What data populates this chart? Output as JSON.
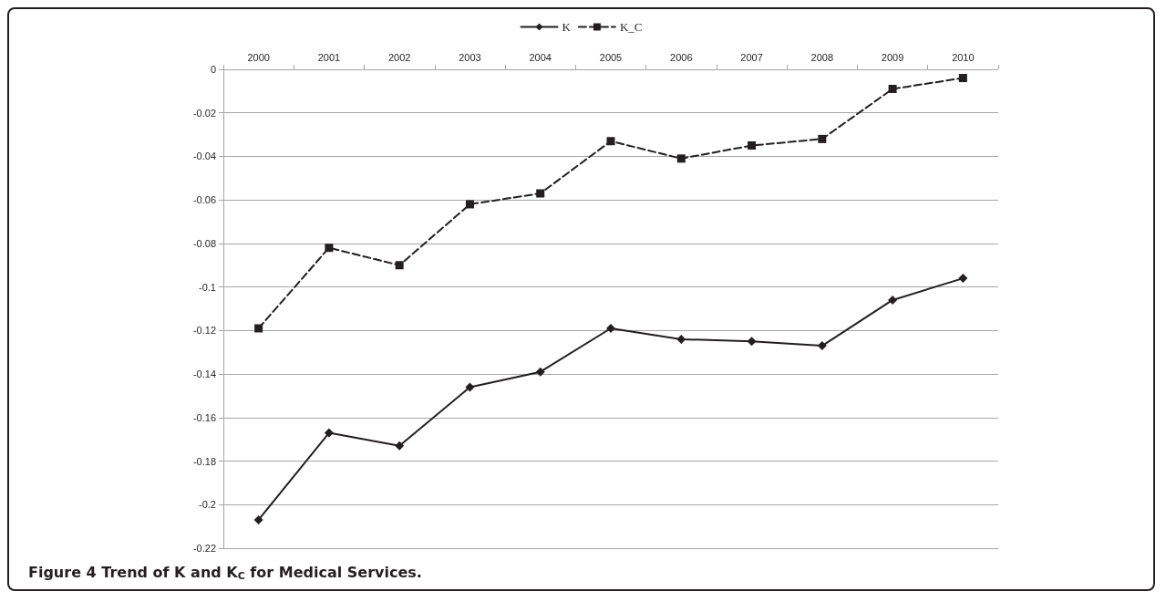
{
  "chart_data": {
    "type": "line",
    "title": "Figure 4 Trend of K and K$_{C}$ for Medical Services.",
    "categories": [
      "2000",
      "2001",
      "2002",
      "2003",
      "2004",
      "2005",
      "2006",
      "2007",
      "2008",
      "2009",
      "2010"
    ],
    "series": [
      {
        "name": "K",
        "color": "#231f20",
        "marker": "diamond",
        "line_style": "solid",
        "values": [
          -0.207,
          -0.167,
          -0.173,
          -0.146,
          -0.139,
          -0.119,
          -0.124,
          -0.125,
          -0.127,
          -0.106,
          -0.096
        ]
      },
      {
        "name": "K_C",
        "color": "#231f20",
        "marker": "square",
        "line_style": "dashed",
        "values": [
          -0.119,
          -0.082,
          -0.09,
          -0.062,
          -0.057,
          -0.033,
          -0.041,
          -0.035,
          -0.032,
          -0.009,
          -0.004
        ]
      }
    ],
    "ylim": [
      -0.22,
      0
    ],
    "yticks": [
      0,
      -0.02,
      -0.04,
      -0.06,
      -0.08,
      -0.1,
      -0.12,
      -0.14,
      -0.16,
      -0.18,
      -0.2,
      -0.22
    ],
    "grid": "y",
    "legend": "top"
  }
}
